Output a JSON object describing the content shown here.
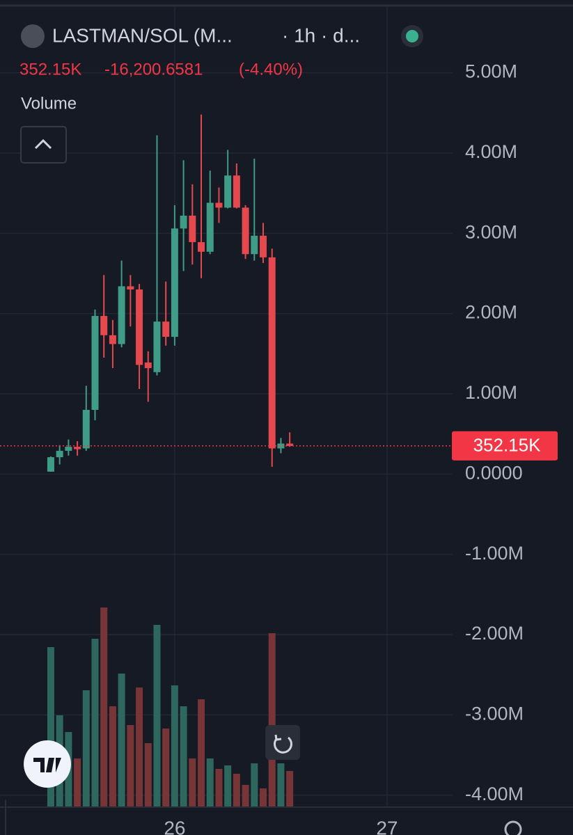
{
  "chart_data": {
    "type": "candlestick",
    "title": "LASTMAN/SOL (M...",
    "interval": "· 1h · d...",
    "last_change": "-16,200.6581",
    "last_change_pct": "(-4.40%)",
    "last_price": {
      "value": 352150,
      "label": "352.15K"
    },
    "volume_label": "Volume",
    "x": [
      0,
      1,
      2,
      3,
      4,
      5,
      6,
      7,
      8,
      9,
      10,
      11,
      12,
      13,
      14,
      15,
      16,
      17,
      18,
      19,
      20,
      21,
      22,
      23,
      24,
      25,
      26,
      27
    ],
    "open": [
      30000,
      210000,
      290000,
      340000,
      320000,
      800000,
      1970000,
      1730000,
      1620000,
      2340000,
      2300000,
      1390000,
      1270000,
      1900000,
      1710000,
      3060000,
      3220000,
      2890000,
      2770000,
      3380000,
      3320000,
      3720000,
      3320000,
      2740000,
      2970000,
      2700000,
      320000,
      380000
    ],
    "high": [
      220000,
      360000,
      430000,
      410000,
      1100000,
      2050000,
      2480000,
      1920000,
      2660000,
      2480000,
      2370000,
      1530000,
      4220000,
      2400000,
      3350000,
      3910000,
      3610000,
      4480000,
      3780000,
      3570000,
      4040000,
      3870000,
      3350000,
      3930000,
      3130000,
      2810000,
      450000,
      520000
    ],
    "low": [
      30000,
      120000,
      230000,
      230000,
      290000,
      670000,
      1450000,
      1320000,
      1580000,
      1840000,
      1060000,
      900000,
      1230000,
      1600000,
      1600000,
      2530000,
      2610000,
      2440000,
      2740000,
      3130000,
      3310000,
      3310000,
      2680000,
      2660000,
      2630000,
      90000,
      260000,
      340000
    ],
    "close": [
      210000,
      290000,
      340000,
      310000,
      800000,
      1970000,
      1730000,
      1620000,
      2340000,
      2300000,
      1360000,
      1320000,
      1900000,
      1710000,
      3060000,
      3220000,
      2890000,
      2770000,
      3380000,
      3320000,
      3720000,
      3320000,
      2740000,
      2970000,
      2700000,
      320000,
      380000,
      350000
    ],
    "volume": [
      230,
      132,
      108,
      70,
      168,
      242,
      287,
      145,
      192,
      118,
      172,
      92,
      262,
      113,
      175,
      145,
      70,
      155,
      70,
      55,
      60,
      48,
      32,
      63,
      27,
      250,
      63,
      52
    ],
    "vlim": [
      0,
      330
    ],
    "up_color": "#3f9c86",
    "down_color": "#e5484d",
    "volume_up_color": "#2e675d",
    "volume_down_color": "#773538",
    "price_color": "#f23645",
    "xlim": [
      -5.74,
      45.4
    ],
    "xticks": [
      {
        "value": 14,
        "label": "26"
      },
      {
        "value": 38,
        "label": "27"
      }
    ],
    "ylim": [
      -4150000,
      5820000
    ],
    "yticks": [
      {
        "value": 5000000,
        "label": "5.00M"
      },
      {
        "value": 4000000,
        "label": "4.00M"
      },
      {
        "value": 3000000,
        "label": "3.00M"
      },
      {
        "value": 2000000,
        "label": "2.00M"
      },
      {
        "value": 1000000,
        "label": "1.00M"
      },
      {
        "value": 0,
        "label": "0.0000"
      },
      {
        "value": -1000000,
        "label": "-1.00M"
      },
      {
        "value": -2000000,
        "label": "-2.00M"
      },
      {
        "value": -3000000,
        "label": "-3.00M"
      },
      {
        "value": -4000000,
        "label": "-4.00M"
      }
    ],
    "grid": true
  }
}
